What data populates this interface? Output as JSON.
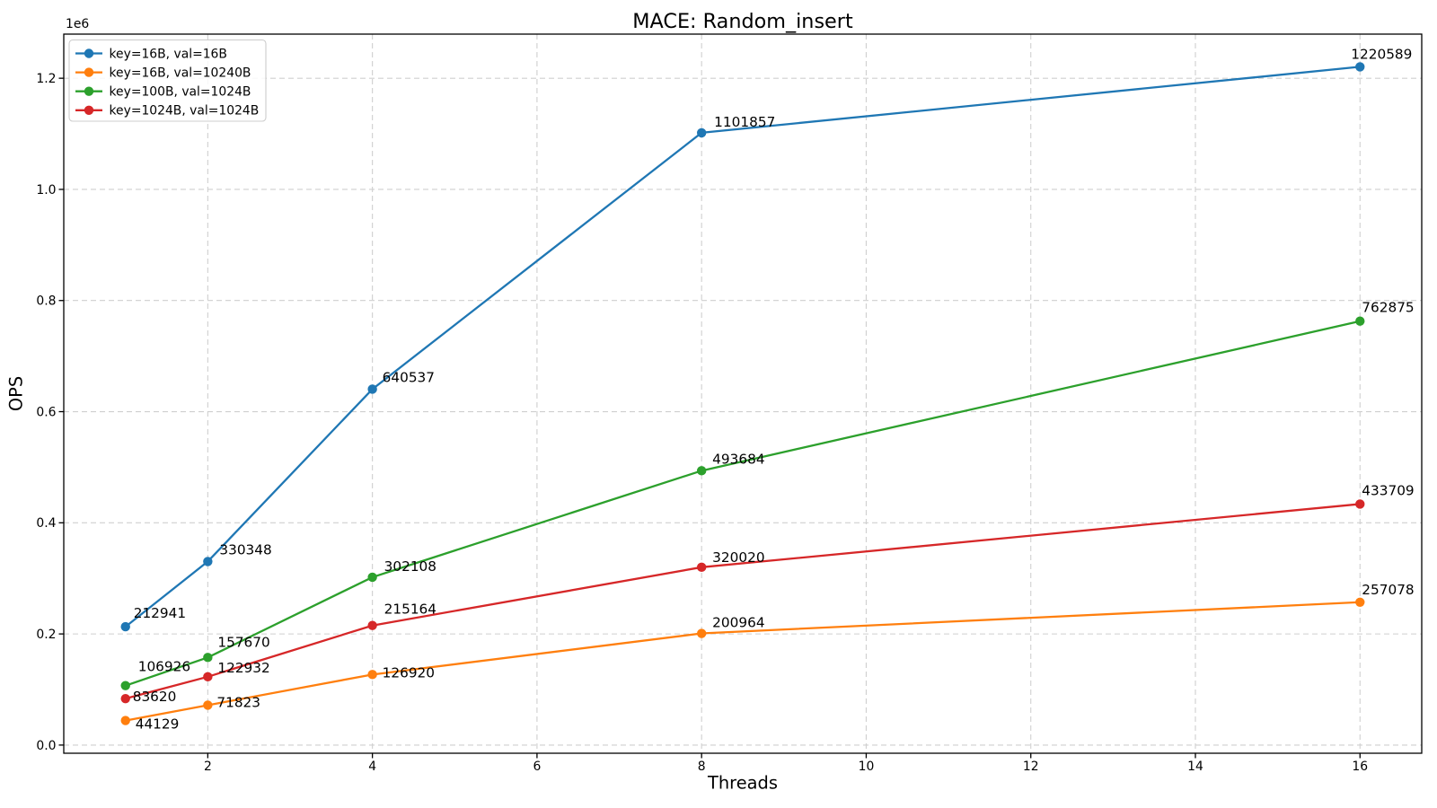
{
  "figure": {
    "background": "#ffffff"
  },
  "chart_data": {
    "type": "line",
    "title": "MACE: Random_insert",
    "xlabel": "Threads",
    "ylabel": "OPS",
    "y_offset_label": "1e6",
    "grid": true,
    "legend_position": "upper-left",
    "x": [
      1,
      2,
      4,
      8,
      16
    ],
    "series": [
      {
        "name": "key=16B, val=16B",
        "color": "#1f77b4",
        "values": [
          212941,
          330348,
          640537,
          1101857,
          1220589
        ],
        "label_offsets": [
          [
            9,
            -10
          ],
          [
            13,
            -8
          ],
          [
            11,
            -8
          ],
          [
            14,
            -7
          ],
          [
            -10,
            -9
          ]
        ]
      },
      {
        "name": "key=16B, val=10240B",
        "color": "#ff7f0e",
        "values": [
          44129,
          71823,
          126920,
          200964,
          257078
        ],
        "label_offsets": [
          [
            11,
            9
          ],
          [
            10,
            2
          ],
          [
            11,
            3
          ],
          [
            12,
            -7
          ],
          [
            2,
            -9
          ]
        ]
      },
      {
        "name": "key=100B, val=1024B",
        "color": "#2ca02c",
        "values": [
          106926,
          157670,
          302108,
          493684,
          762875
        ],
        "label_offsets": [
          [
            14,
            -16
          ],
          [
            11,
            -12
          ],
          [
            13,
            -7
          ],
          [
            12,
            -8
          ],
          [
            2,
            -10
          ]
        ]
      },
      {
        "name": "key=1024B, val=1024B",
        "color": "#d62728",
        "values": [
          83620,
          122932,
          215164,
          320020,
          433709
        ],
        "label_offsets": [
          [
            8,
            3
          ],
          [
            11,
            -5
          ],
          [
            13,
            -13
          ],
          [
            12,
            -6
          ],
          [
            2,
            -10
          ]
        ]
      }
    ],
    "xlim": [
      0.25,
      16.75
    ],
    "ylim": [
      -14694,
      1279412
    ],
    "xticks": {
      "values": [
        2,
        4,
        6,
        8,
        10,
        12,
        14,
        16
      ],
      "labels": [
        "2",
        "4",
        "6",
        "8",
        "10",
        "12",
        "14",
        "16"
      ]
    },
    "yticks": {
      "values": [
        0,
        200000,
        400000,
        600000,
        800000,
        1000000,
        1200000
      ],
      "labels": [
        "0.0",
        "0.2",
        "0.4",
        "0.6",
        "0.8",
        "1.0",
        "1.2"
      ]
    }
  },
  "colors": {
    "grid": "#cfcfcf",
    "axis": "#000000",
    "legend_border": "#cccccc"
  }
}
